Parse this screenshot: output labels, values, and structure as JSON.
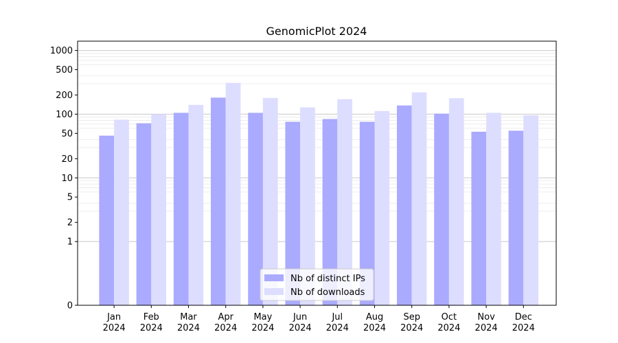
{
  "chart_data": {
    "type": "bar",
    "title": "GenomicPlot 2024",
    "xlabel": "",
    "ylabel": "",
    "yscale": "symlog",
    "ylim": [
      0,
      1400
    ],
    "y_ticks": [
      0,
      1,
      2,
      5,
      10,
      20,
      50,
      100,
      200,
      500,
      1000
    ],
    "grid": true,
    "legend_position": "lower-center",
    "categories": [
      [
        "Jan",
        "2024"
      ],
      [
        "Feb",
        "2024"
      ],
      [
        "Mar",
        "2024"
      ],
      [
        "Apr",
        "2024"
      ],
      [
        "May",
        "2024"
      ],
      [
        "Jun",
        "2024"
      ],
      [
        "Jul",
        "2024"
      ],
      [
        "Aug",
        "2024"
      ],
      [
        "Sep",
        "2024"
      ],
      [
        "Oct",
        "2024"
      ],
      [
        "Nov",
        "2024"
      ],
      [
        "Dec",
        "2024"
      ]
    ],
    "series": [
      {
        "name": "Nb of distinct IPs",
        "color": "#aaaaff",
        "values": [
          46,
          72,
          105,
          182,
          105,
          76,
          84,
          76,
          137,
          102,
          53,
          55
        ]
      },
      {
        "name": "Nb of downloads",
        "color": "#ddddff",
        "values": [
          82,
          100,
          140,
          310,
          180,
          128,
          172,
          112,
          220,
          178,
          105,
          96
        ]
      }
    ]
  }
}
